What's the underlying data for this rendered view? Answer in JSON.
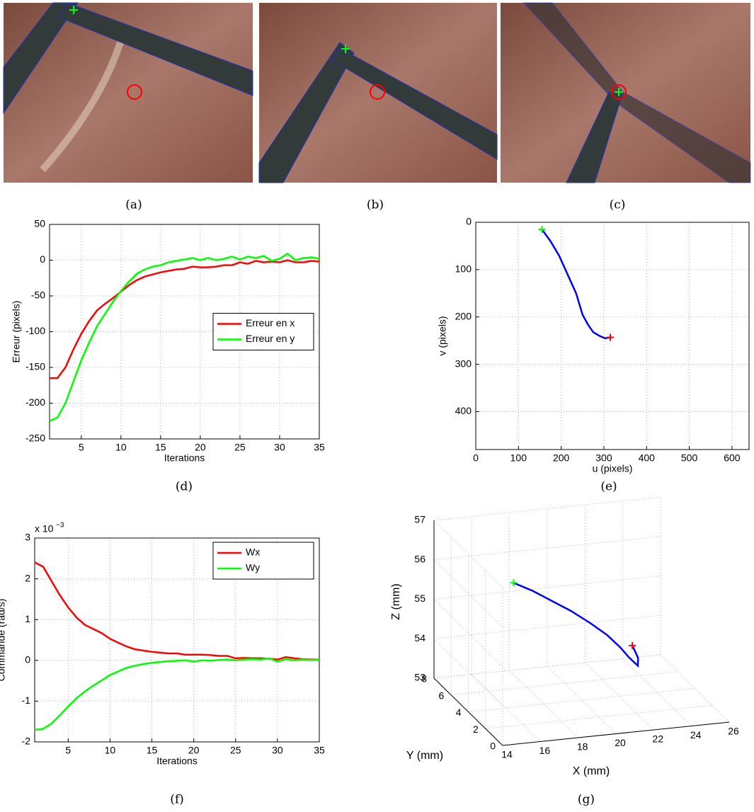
{
  "captions": [
    "(a)",
    "(b)",
    "(c)",
    "(d)",
    "(e)",
    "(f)",
    "(g)"
  ],
  "chart_data": [
    {
      "type": "line",
      "x_label": "Iterations",
      "y_label": "Erreur (pixels)",
      "x": [
        1,
        2,
        3,
        4,
        5,
        6,
        7,
        8,
        9,
        10,
        11,
        12,
        13,
        14,
        15,
        16,
        17,
        18,
        19,
        20,
        21,
        22,
        23,
        24,
        25,
        26,
        27,
        28,
        29,
        30,
        31,
        32,
        33,
        34,
        35
      ],
      "series": [
        {
          "name": "Erreur en x",
          "color": "#ff0000",
          "values": [
            -165,
            -165,
            -150,
            -125,
            -103,
            -85,
            -70,
            -61,
            -53,
            -44,
            -35,
            -28,
            -23,
            -20,
            -17,
            -15,
            -13,
            -12,
            -9,
            -10,
            -10,
            -9,
            -7,
            -7,
            -3,
            -5,
            -1,
            -3,
            -2,
            -3,
            0,
            -3,
            -3,
            -1,
            -2
          ]
        },
        {
          "name": "Erreur en y",
          "color": "#00ff00",
          "values": [
            -225,
            -220,
            -200,
            -170,
            -140,
            -115,
            -92,
            -75,
            -58,
            -43,
            -30,
            -19,
            -13,
            -9,
            -7,
            -3,
            -1,
            1,
            3,
            0,
            3,
            0,
            2,
            5,
            1,
            5,
            3,
            6,
            -1,
            2,
            9,
            0,
            3,
            4,
            2
          ]
        }
      ],
      "xlim": [
        1,
        35
      ],
      "xticks": [
        5,
        10,
        15,
        20,
        25,
        30,
        35
      ],
      "ylim": [
        -250,
        50
      ],
      "yticks": [
        -250,
        -200,
        -150,
        -100,
        -50,
        0,
        50
      ],
      "grid": true,
      "legend": "center right"
    },
    {
      "type": "line",
      "x_label": "u (pixels)",
      "y_label": "v (pixels)",
      "x": [
        155,
        175,
        195,
        215,
        235,
        250,
        262,
        275,
        290,
        303,
        315
      ],
      "series": [
        {
          "color": "#0000ff",
          "values": [
            15,
            40,
            70,
            110,
            150,
            195,
            215,
            232,
            240,
            245,
            243
          ]
        }
      ],
      "xlim": [
        0,
        640
      ],
      "xticks": [
        0,
        100,
        200,
        300,
        400,
        500,
        600
      ],
      "ylim": [
        0,
        480
      ],
      "yticks": [
        0,
        100,
        200,
        300,
        400
      ],
      "y_reversed": true,
      "grid": true,
      "start_marker_color": "#00ff00",
      "end_marker_color": "#ff0000"
    },
    {
      "type": "line",
      "x_label": "Iterations",
      "y_label": "Commande (rad/s)",
      "scale_label": "x 10",
      "scale_exponent": "−3",
      "x": [
        1,
        2,
        3,
        4,
        5,
        6,
        7,
        8,
        9,
        10,
        11,
        12,
        13,
        14,
        15,
        16,
        17,
        18,
        19,
        20,
        21,
        22,
        23,
        24,
        25,
        26,
        27,
        28,
        29,
        30,
        31,
        32,
        33,
        34,
        35
      ],
      "series": [
        {
          "name": "Wx",
          "color": "#ff0000",
          "values": [
            2.4,
            2.3,
            1.95,
            1.6,
            1.3,
            1.05,
            0.87,
            0.77,
            0.67,
            0.53,
            0.43,
            0.34,
            0.27,
            0.24,
            0.21,
            0.19,
            0.17,
            0.17,
            0.14,
            0.14,
            0.14,
            0.13,
            0.11,
            0.11,
            0.05,
            0.06,
            0.05,
            0.05,
            0.04,
            0.02,
            0.08,
            0.05,
            0.03,
            0.02,
            0.02
          ]
        },
        {
          "name": "Wy",
          "color": "#00ff00",
          "values": [
            -1.7,
            -1.68,
            -1.55,
            -1.35,
            -1.13,
            -0.93,
            -0.76,
            -0.62,
            -0.49,
            -0.36,
            -0.27,
            -0.18,
            -0.13,
            -0.09,
            -0.06,
            -0.04,
            -0.02,
            -0.01,
            0,
            -0.03,
            0,
            -0.01,
            0.01,
            0.02,
            0,
            0.02,
            0.03,
            0.02,
            0.05,
            -0.03,
            0.03,
            0,
            0.02,
            0.01,
            0.02
          ]
        }
      ],
      "xlim": [
        1,
        35
      ],
      "xticks": [
        5,
        10,
        15,
        20,
        25,
        30,
        35
      ],
      "ylim": [
        -2,
        3
      ],
      "yticks": [
        -2,
        -1,
        0,
        1,
        2,
        3
      ],
      "grid": true,
      "legend": "upper right"
    },
    {
      "type": "line3d",
      "x_label": "X (mm)",
      "y_label": "Y (mm)",
      "z_label": "Z (mm)",
      "x": [
        16.4,
        17.5,
        18.6,
        19.7,
        20.8,
        21.8,
        22.6,
        23.2,
        23.8,
        23.9,
        23.6
      ],
      "y": [
        4,
        4.2,
        4.4,
        4.6,
        4.8,
        5,
        5.2,
        5.5,
        5.8,
        6,
        6
      ],
      "z": [
        56.15,
        55.85,
        55.5,
        55.15,
        54.75,
        54.35,
        53.95,
        53.6,
        53.3,
        53.45,
        53.78
      ],
      "color": "#0000ff",
      "xlim": [
        14,
        26
      ],
      "xticks": [
        14,
        16,
        18,
        20,
        22,
        24,
        26
      ],
      "ylim": [
        0,
        8
      ],
      "yticks": [
        0,
        2,
        4,
        6,
        8
      ],
      "zlim": [
        53,
        57
      ],
      "zticks": [
        53,
        54,
        55,
        56,
        57
      ],
      "grid": true,
      "start_marker_color": "#00ff00",
      "end_marker_color": "#ff0000"
    }
  ]
}
